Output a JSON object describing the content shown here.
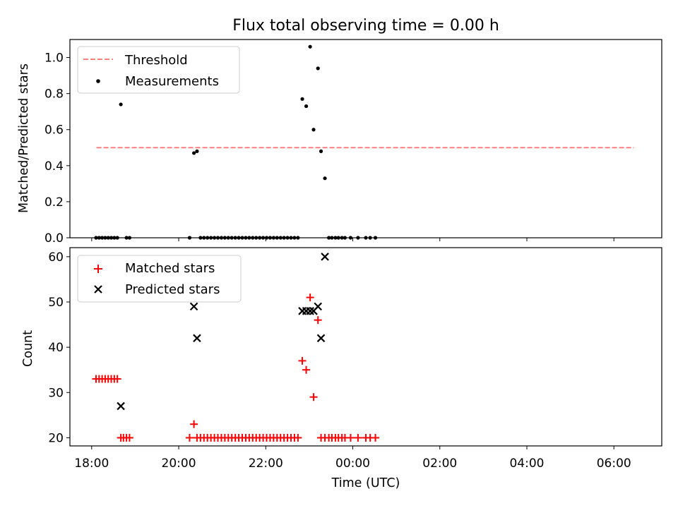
{
  "figure_title": "Flux total observing time = 0.00 h",
  "colors": {
    "matched": "#ff0000",
    "predicted": "#000000",
    "threshold": "#ff7f7f",
    "measurement": "#000000"
  },
  "chart_data": [
    {
      "type": "scatter",
      "title": "Flux total observing time = 0.00 h",
      "xlabel": "",
      "ylabel": "Matched/Predicted stars",
      "x_unit": "hours since 18:00 UTC",
      "xlim": [
        -0.5,
        13.1
      ],
      "ylim": [
        0.0,
        1.1
      ],
      "yticks": [
        0.0,
        0.2,
        0.4,
        0.6,
        0.8,
        1.0
      ],
      "ytick_labels": [
        "0.0",
        "0.2",
        "0.4",
        "0.6",
        "0.8",
        "1.0"
      ],
      "legend": {
        "placement": "top-left",
        "entries": [
          "Threshold",
          "Measurements"
        ]
      },
      "threshold": {
        "name": "Threshold",
        "y": 0.5,
        "x_range": [
          0.11,
          12.46
        ]
      },
      "series": [
        {
          "name": "Measurements",
          "points": [
            [
              0.1,
              0
            ],
            [
              0.17,
              0
            ],
            [
              0.24,
              0
            ],
            [
              0.31,
              0
            ],
            [
              0.38,
              0
            ],
            [
              0.45,
              0
            ],
            [
              0.52,
              0
            ],
            [
              0.59,
              0
            ],
            [
              0.67,
              0.74
            ],
            [
              0.8,
              0
            ],
            [
              0.87,
              0
            ],
            [
              2.25,
              0
            ],
            [
              2.35,
              0.47
            ],
            [
              2.42,
              0.48
            ],
            [
              2.5,
              0
            ],
            [
              2.58,
              0
            ],
            [
              2.66,
              0
            ],
            [
              2.74,
              0
            ],
            [
              2.82,
              0
            ],
            [
              2.9,
              0
            ],
            [
              2.98,
              0
            ],
            [
              3.06,
              0
            ],
            [
              3.14,
              0
            ],
            [
              3.22,
              0
            ],
            [
              3.3,
              0
            ],
            [
              3.38,
              0
            ],
            [
              3.46,
              0
            ],
            [
              3.54,
              0
            ],
            [
              3.62,
              0
            ],
            [
              3.7,
              0
            ],
            [
              3.78,
              0
            ],
            [
              3.86,
              0
            ],
            [
              3.94,
              0
            ],
            [
              4.02,
              0
            ],
            [
              4.1,
              0
            ],
            [
              4.18,
              0
            ],
            [
              4.26,
              0
            ],
            [
              4.34,
              0
            ],
            [
              4.42,
              0
            ],
            [
              4.5,
              0
            ],
            [
              4.58,
              0
            ],
            [
              4.66,
              0
            ],
            [
              4.74,
              0
            ],
            [
              4.84,
              0.77
            ],
            [
              4.93,
              0.73
            ],
            [
              5.02,
              1.06
            ],
            [
              5.1,
              0.6
            ],
            [
              5.2,
              0.94
            ],
            [
              5.27,
              0.48
            ],
            [
              5.36,
              0.33
            ],
            [
              5.45,
              0
            ],
            [
              5.52,
              0
            ],
            [
              5.6,
              0
            ],
            [
              5.67,
              0
            ],
            [
              5.75,
              0
            ],
            [
              5.82,
              0
            ],
            [
              5.95,
              0
            ],
            [
              6.12,
              0
            ],
            [
              6.3,
              0
            ],
            [
              6.4,
              0
            ],
            [
              6.52,
              0
            ]
          ]
        }
      ]
    },
    {
      "type": "scatter",
      "title": "",
      "xlabel": "Time (UTC)",
      "ylabel": "Count",
      "x_unit": "hours since 18:00 UTC",
      "xlim": [
        -0.5,
        13.1
      ],
      "ylim": [
        18.2,
        62
      ],
      "yticks": [
        20,
        30,
        40,
        50,
        60
      ],
      "ytick_labels": [
        "20",
        "30",
        "40",
        "50",
        "60"
      ],
      "xticks": [
        0,
        2,
        4,
        6,
        8,
        10,
        12
      ],
      "xtick_labels": [
        "18:00",
        "20:00",
        "22:00",
        "00:00",
        "02:00",
        "04:00",
        "06:00"
      ],
      "legend": {
        "placement": "top-left",
        "entries": [
          "Matched stars",
          "Predicted stars"
        ]
      },
      "series": [
        {
          "name": "Matched stars",
          "points": [
            [
              0.1,
              33
            ],
            [
              0.17,
              33
            ],
            [
              0.24,
              33
            ],
            [
              0.31,
              33
            ],
            [
              0.38,
              33
            ],
            [
              0.45,
              33
            ],
            [
              0.52,
              33
            ],
            [
              0.59,
              33
            ],
            [
              0.67,
              20
            ],
            [
              0.73,
              20
            ],
            [
              0.8,
              20
            ],
            [
              0.87,
              20
            ],
            [
              2.25,
              20
            ],
            [
              2.35,
              23
            ],
            [
              2.42,
              20
            ],
            [
              2.5,
              20
            ],
            [
              2.58,
              20
            ],
            [
              2.66,
              20
            ],
            [
              2.74,
              20
            ],
            [
              2.82,
              20
            ],
            [
              2.9,
              20
            ],
            [
              2.98,
              20
            ],
            [
              3.06,
              20
            ],
            [
              3.14,
              20
            ],
            [
              3.22,
              20
            ],
            [
              3.3,
              20
            ],
            [
              3.38,
              20
            ],
            [
              3.46,
              20
            ],
            [
              3.54,
              20
            ],
            [
              3.62,
              20
            ],
            [
              3.7,
              20
            ],
            [
              3.78,
              20
            ],
            [
              3.86,
              20
            ],
            [
              3.94,
              20
            ],
            [
              4.02,
              20
            ],
            [
              4.1,
              20
            ],
            [
              4.18,
              20
            ],
            [
              4.26,
              20
            ],
            [
              4.34,
              20
            ],
            [
              4.42,
              20
            ],
            [
              4.5,
              20
            ],
            [
              4.58,
              20
            ],
            [
              4.66,
              20
            ],
            [
              4.74,
              20
            ],
            [
              4.84,
              37
            ],
            [
              4.93,
              35
            ],
            [
              5.02,
              51
            ],
            [
              5.1,
              29
            ],
            [
              5.2,
              46
            ],
            [
              5.27,
              20
            ],
            [
              5.36,
              20
            ],
            [
              5.45,
              20
            ],
            [
              5.52,
              20
            ],
            [
              5.6,
              20
            ],
            [
              5.67,
              20
            ],
            [
              5.75,
              20
            ],
            [
              5.82,
              20
            ],
            [
              5.95,
              20
            ],
            [
              6.12,
              20
            ],
            [
              6.3,
              20
            ],
            [
              6.4,
              20
            ],
            [
              6.52,
              20
            ]
          ]
        },
        {
          "name": "Predicted stars",
          "points": [
            [
              0.67,
              27
            ],
            [
              2.35,
              49
            ],
            [
              2.42,
              42
            ],
            [
              4.84,
              48
            ],
            [
              4.93,
              48
            ],
            [
              5.02,
              48
            ],
            [
              5.1,
              48
            ],
            [
              5.2,
              49
            ],
            [
              5.27,
              42
            ],
            [
              5.36,
              60
            ]
          ]
        }
      ]
    }
  ]
}
